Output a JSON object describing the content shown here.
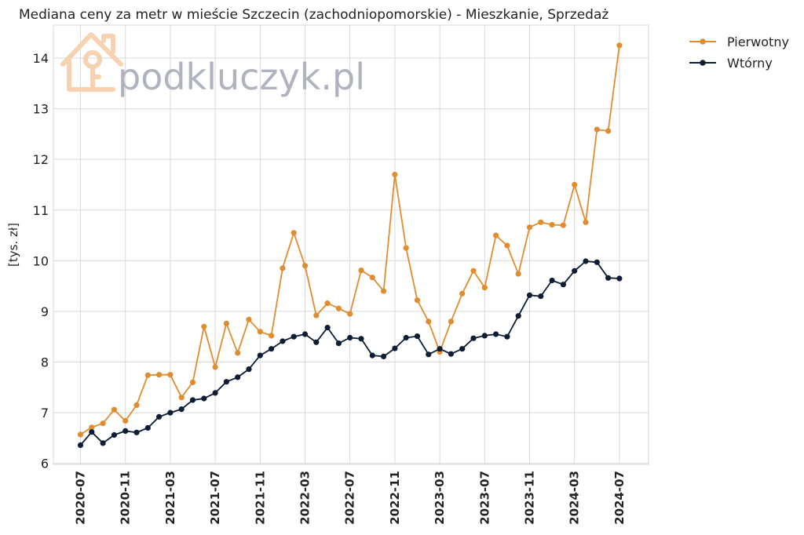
{
  "chart_data": {
    "type": "line",
    "title": "Mediana ceny za metr w mieście Szczecin (zachodniopomorskie) - Mieszkanie, Sprzedaż",
    "ylabel": "[tys. zł]",
    "xlabel": "",
    "ylim": [
      5.98,
      14.65
    ],
    "yticks": [
      6,
      7,
      8,
      9,
      10,
      11,
      12,
      13,
      14
    ],
    "x_start": "2020-07",
    "x": [
      "2020-07",
      "2020-08",
      "2020-09",
      "2020-10",
      "2020-11",
      "2020-12",
      "2021-01",
      "2021-02",
      "2021-03",
      "2021-04",
      "2021-05",
      "2021-06",
      "2021-07",
      "2021-08",
      "2021-09",
      "2021-10",
      "2021-11",
      "2021-12",
      "2022-01",
      "2022-02",
      "2022-03",
      "2022-04",
      "2022-05",
      "2022-06",
      "2022-07",
      "2022-08",
      "2022-09",
      "2022-10",
      "2022-11",
      "2022-12",
      "2023-01",
      "2023-02",
      "2023-03",
      "2023-04",
      "2023-05",
      "2023-06",
      "2023-07",
      "2023-08",
      "2023-09",
      "2023-10",
      "2023-11",
      "2023-12",
      "2024-01",
      "2024-02",
      "2024-03",
      "2024-04",
      "2024-05",
      "2024-06",
      "2024-07"
    ],
    "xticks": [
      "2020-07",
      "2020-11",
      "2021-03",
      "2021-07",
      "2021-11",
      "2022-03",
      "2022-07",
      "2022-11",
      "2023-03",
      "2023-07",
      "2023-11",
      "2024-03",
      "2024-07"
    ],
    "grid": true,
    "legend_position": "outside-top-right",
    "series": [
      {
        "name": "Pierwotny",
        "color": "#e08c30",
        "values": [
          6.57,
          6.71,
          6.79,
          7.06,
          6.84,
          7.15,
          7.74,
          7.75,
          7.75,
          7.3,
          7.6,
          8.7,
          7.9,
          8.76,
          8.18,
          8.84,
          8.6,
          8.52,
          9.85,
          10.55,
          9.9,
          8.92,
          9.16,
          9.06,
          8.95,
          9.81,
          9.67,
          9.4,
          11.7,
          10.25,
          9.22,
          8.8,
          8.2,
          8.8,
          9.35,
          9.8,
          9.47,
          10.5,
          10.3,
          9.74,
          10.66,
          10.76,
          10.71,
          10.7,
          11.5,
          10.76,
          12.59,
          12.56,
          14.25
        ]
      },
      {
        "name": "Wtórny",
        "color": "#0e1d33",
        "values": [
          6.36,
          6.62,
          6.4,
          6.56,
          6.64,
          6.61,
          6.7,
          6.92,
          7.0,
          7.07,
          7.25,
          7.28,
          7.39,
          7.61,
          7.7,
          7.86,
          8.13,
          8.26,
          8.41,
          8.5,
          8.55,
          8.39,
          8.68,
          8.37,
          8.48,
          8.46,
          8.13,
          8.11,
          8.27,
          8.48,
          8.51,
          8.15,
          8.26,
          8.16,
          8.26,
          8.47,
          8.52,
          8.55,
          8.5,
          8.91,
          9.32,
          9.3,
          9.61,
          9.53,
          9.8,
          9.99,
          9.97,
          9.66,
          9.65
        ]
      }
    ]
  },
  "watermark": {
    "text": "podkluczyk.pl",
    "logo_icon": "house-key-icon",
    "logo_color": "#f6d2b0"
  }
}
